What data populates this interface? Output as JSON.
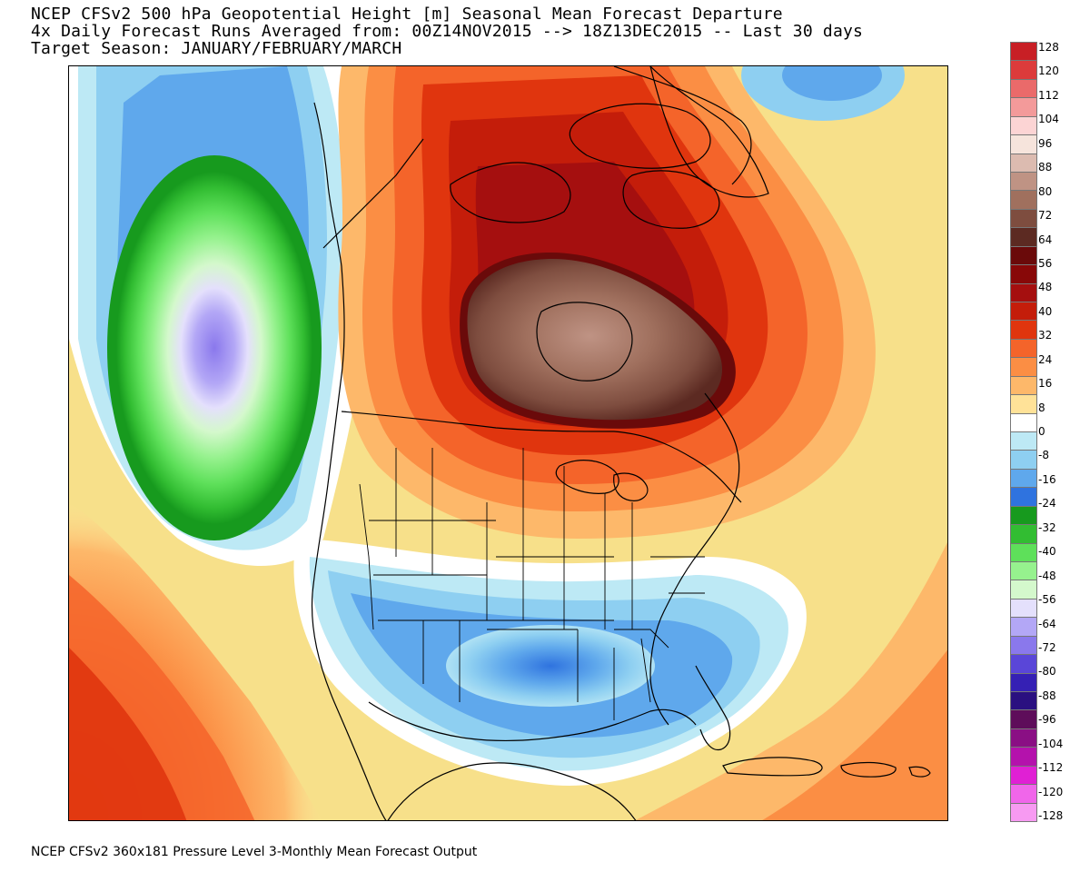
{
  "title": {
    "line1": "NCEP CFSv2 500 hPa Geopotential Height [m] Seasonal Mean Forecast Departure",
    "line2": "4x Daily Forecast Runs Averaged from: 00Z14NOV2015 --> 18Z13DEC2015 -- Last 30 days",
    "line3": "Target Season: JANUARY/FEBRUARY/MARCH"
  },
  "footer": "NCEP CFSv2 360x181 Pressure Level 3-Monthly Mean Forecast Output",
  "colorbar": {
    "swatches": [
      {
        "color": "#c81f25"
      },
      {
        "color": "#dc3b3b"
      },
      {
        "color": "#ea6a6a"
      },
      {
        "color": "#f39a9a"
      },
      {
        "color": "#fcd4d4"
      },
      {
        "color": "#f6e4dc"
      },
      {
        "color": "#dcbbb0"
      },
      {
        "color": "#bf9384"
      },
      {
        "color": "#a0705e"
      },
      {
        "color": "#7e4d3f"
      },
      {
        "color": "#5c2a22"
      },
      {
        "color": "#6a0a0a"
      },
      {
        "color": "#880808"
      },
      {
        "color": "#a50f0f"
      },
      {
        "color": "#c41d0a"
      },
      {
        "color": "#e0350e"
      },
      {
        "color": "#f4642a"
      },
      {
        "color": "#fb8e44"
      },
      {
        "color": "#fdb86a"
      },
      {
        "color": "#ffe298"
      },
      {
        "color": "#ffffff"
      },
      {
        "color": "#bde9f5"
      },
      {
        "color": "#8ecff1"
      },
      {
        "color": "#5fa8ec"
      },
      {
        "color": "#2f73df"
      },
      {
        "color": "#179a1e"
      },
      {
        "color": "#32bd32"
      },
      {
        "color": "#5ee05a"
      },
      {
        "color": "#96f28e"
      },
      {
        "color": "#d4f8cc"
      },
      {
        "color": "#e4e0fc"
      },
      {
        "color": "#b3a7f6"
      },
      {
        "color": "#8a78ec"
      },
      {
        "color": "#5a46d8"
      },
      {
        "color": "#3520b4"
      },
      {
        "color": "#2a1080"
      },
      {
        "color": "#5e0d5a"
      },
      {
        "color": "#8a0f84"
      },
      {
        "color": "#b412ac"
      },
      {
        "color": "#e020d4"
      },
      {
        "color": "#f066ea"
      },
      {
        "color": "#f79af2"
      }
    ],
    "ticks": [
      {
        "label": "128"
      },
      {
        "label": "120"
      },
      {
        "label": "112"
      },
      {
        "label": "104"
      },
      {
        "label": "96"
      },
      {
        "label": "88"
      },
      {
        "label": "80"
      },
      {
        "label": "72"
      },
      {
        "label": "64"
      },
      {
        "label": "56"
      },
      {
        "label": "48"
      },
      {
        "label": "40"
      },
      {
        "label": "32"
      },
      {
        "label": "24"
      },
      {
        "label": "16"
      },
      {
        "label": "8"
      },
      {
        "label": "0"
      },
      {
        "label": "-8"
      },
      {
        "label": "-16"
      },
      {
        "label": "-24"
      },
      {
        "label": "-32"
      },
      {
        "label": "-40"
      },
      {
        "label": "-48"
      },
      {
        "label": "-56"
      },
      {
        "label": "-64"
      },
      {
        "label": "-72"
      },
      {
        "label": "-80"
      },
      {
        "label": "-88"
      },
      {
        "label": "-96"
      },
      {
        "label": "-104"
      },
      {
        "label": "-112"
      },
      {
        "label": "-120"
      },
      {
        "label": "-128"
      }
    ]
  },
  "map": {
    "background_color": "#f7e08a",
    "anomaly_positive_core_color": "#a0705e",
    "anomaly_negative_core_color": "#8a78ec"
  }
}
